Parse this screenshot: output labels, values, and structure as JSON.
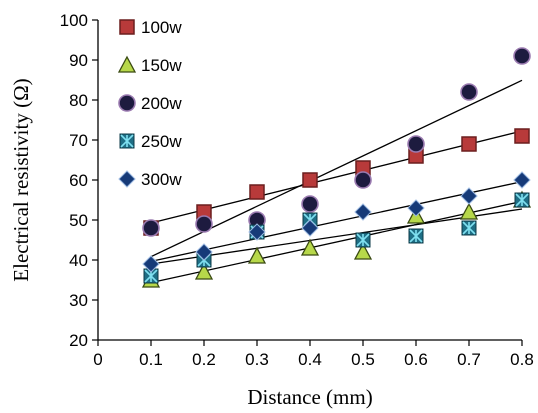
{
  "chart_data": {
    "type": "scatter",
    "title": "",
    "xlabel": "Distance (mm)",
    "ylabel": "Electrical resistivity (Ω)",
    "xlim": [
      0,
      0.8
    ],
    "ylim": [
      20,
      100
    ],
    "xticks": [
      "0",
      "0.1",
      "0.2",
      "0.3",
      "0.4",
      "0.5",
      "0.6",
      "0.7",
      "0.8"
    ],
    "yticks": [
      "20",
      "30",
      "40",
      "50",
      "60",
      "70",
      "80",
      "90",
      "100"
    ],
    "x": [
      0.1,
      0.2,
      0.3,
      0.4,
      0.5,
      0.6,
      0.7,
      0.8
    ],
    "grid": false,
    "legend": "top-left",
    "trendlines": true,
    "series": [
      {
        "name": "100w",
        "marker": "square",
        "fill": "#b83a3a",
        "stroke": "#6b1e1e",
        "values": [
          48,
          52,
          57,
          60,
          63,
          66,
          69,
          71
        ]
      },
      {
        "name": "150w",
        "marker": "triangle",
        "fill": "#b7d84a",
        "stroke": "#3a4a12",
        "values": [
          35,
          37,
          41,
          43,
          42,
          51,
          52,
          55
        ]
      },
      {
        "name": "200w",
        "marker": "circle",
        "fill": "#1d1b3f",
        "stroke": "#9a7ab0",
        "values": [
          48,
          49,
          50,
          54,
          60,
          69,
          82,
          91
        ]
      },
      {
        "name": "250w",
        "marker": "boxstar",
        "fill": "#1f6f86",
        "stroke": "#7fe0f0",
        "values": [
          36,
          40,
          47,
          50,
          45,
          46,
          48,
          55
        ]
      },
      {
        "name": "300w",
        "marker": "diamond",
        "fill": "#163a78",
        "stroke": "#9ab8e0",
        "values": [
          39,
          42,
          47,
          48,
          52,
          53,
          56,
          60
        ]
      }
    ]
  }
}
